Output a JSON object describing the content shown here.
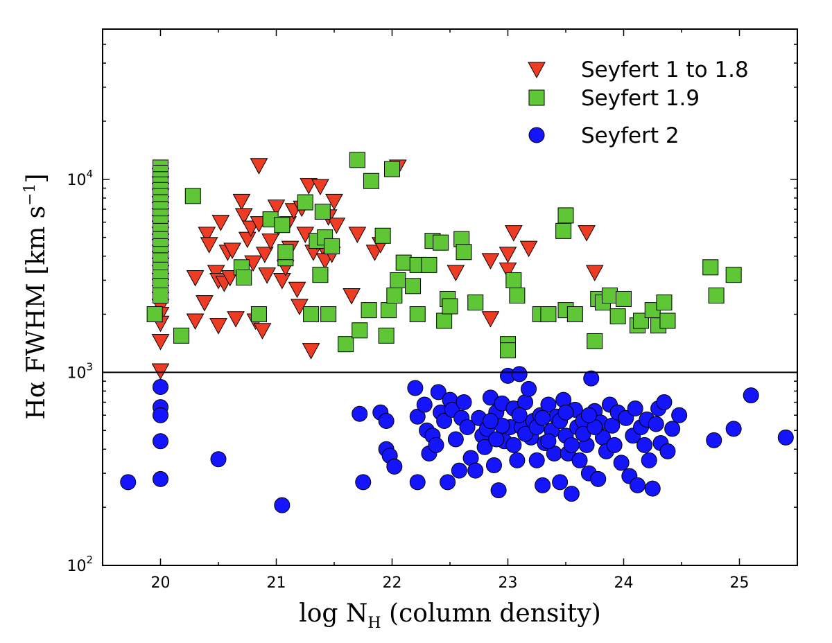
{
  "chart_data": {
    "type": "scatter",
    "xlabel": {
      "main": "log N",
      "sub": "H",
      "rest": " (column density)"
    },
    "ylabel": {
      "main": "Hα FWHM [km s",
      "sup": "−1",
      "rest": "]"
    },
    "xlim": [
      19.5,
      25.5
    ],
    "ylim": [
      100,
      60000
    ],
    "yscale": "log",
    "xticks": [
      20,
      21,
      22,
      23,
      24,
      25
    ],
    "yticks": [
      {
        "value": 100,
        "base": "10",
        "exp": "2"
      },
      {
        "value": 1000,
        "base": "10",
        "exp": "3"
      },
      {
        "value": 10000,
        "base": "10",
        "exp": "4"
      }
    ],
    "hline": 1000,
    "grid": false,
    "legend_position": "top-right",
    "series": [
      {
        "name": "Seyfert 1 to 1.8",
        "marker": "triangle-down",
        "color": "#ee3b23",
        "points": [
          [
            20,
            10500
          ],
          [
            20,
            9500
          ],
          [
            20,
            8800
          ],
          [
            20,
            8200
          ],
          [
            20,
            7500
          ],
          [
            20,
            7000
          ],
          [
            20,
            6500
          ],
          [
            20,
            6000
          ],
          [
            20,
            5600
          ],
          [
            20,
            5200
          ],
          [
            20,
            4800
          ],
          [
            20,
            4500
          ],
          [
            20,
            4200
          ],
          [
            20,
            3900
          ],
          [
            20,
            3600
          ],
          [
            20,
            3300
          ],
          [
            20,
            3000
          ],
          [
            20,
            2800
          ],
          [
            20,
            2600
          ],
          [
            20,
            2400
          ],
          [
            20,
            2200
          ],
          [
            20,
            2000
          ],
          [
            20,
            1800
          ],
          [
            20,
            1450
          ],
          [
            20,
            1020
          ],
          [
            20.3,
            3100
          ],
          [
            20.3,
            1850
          ],
          [
            20.38,
            2300
          ],
          [
            20.4,
            5200
          ],
          [
            20.42,
            4600
          ],
          [
            20.48,
            3300
          ],
          [
            20.5,
            3000
          ],
          [
            20.5,
            1750
          ],
          [
            20.52,
            6000
          ],
          [
            20.55,
            2900
          ],
          [
            20.58,
            4200
          ],
          [
            20.6,
            3100
          ],
          [
            20.62,
            4300
          ],
          [
            20.65,
            1900
          ],
          [
            20.7,
            7700
          ],
          [
            20.72,
            6500
          ],
          [
            20.75,
            4900
          ],
          [
            20.78,
            5600
          ],
          [
            20.8,
            3700
          ],
          [
            20.82,
            1850
          ],
          [
            20.85,
            11800
          ],
          [
            20.85,
            5900
          ],
          [
            20.88,
            1650
          ],
          [
            20.9,
            4100
          ],
          [
            20.92,
            3200
          ],
          [
            20.95,
            4800
          ],
          [
            21.0,
            7200
          ],
          [
            21.02,
            5700
          ],
          [
            21.05,
            3000
          ],
          [
            21.08,
            3500
          ],
          [
            21.1,
            5900
          ],
          [
            21.12,
            4400
          ],
          [
            21.15,
            6900
          ],
          [
            21.18,
            2700
          ],
          [
            21.2,
            2200
          ],
          [
            21.22,
            7100
          ],
          [
            21.25,
            5200
          ],
          [
            21.28,
            9300
          ],
          [
            21.3,
            1300
          ],
          [
            21.32,
            4200
          ],
          [
            21.35,
            4800
          ],
          [
            21.38,
            9200
          ],
          [
            21.4,
            4500
          ],
          [
            21.42,
            3800
          ],
          [
            21.45,
            6400
          ],
          [
            21.48,
            4100
          ],
          [
            21.5,
            7700
          ],
          [
            21.52,
            5800
          ],
          [
            21.65,
            2500
          ],
          [
            21.7,
            5200
          ],
          [
            21.85,
            4200
          ],
          [
            21.9,
            4600
          ],
          [
            22.05,
            11600
          ],
          [
            22.55,
            3300
          ],
          [
            22.85,
            3800
          ],
          [
            22.85,
            1900
          ],
          [
            23.0,
            4100
          ],
          [
            23.0,
            3400
          ],
          [
            23.05,
            5300
          ],
          [
            23.18,
            4400
          ],
          [
            23.68,
            5300
          ],
          [
            23.75,
            3300
          ]
        ]
      },
      {
        "name": "Seyfert 1.9",
        "marker": "square",
        "color": "#5fc635",
        "points": [
          [
            20,
            11500
          ],
          [
            20,
            10800
          ],
          [
            20,
            10000
          ],
          [
            20,
            9400
          ],
          [
            20,
            8800
          ],
          [
            20,
            8200
          ],
          [
            20,
            7600
          ],
          [
            20,
            7000
          ],
          [
            20,
            6400
          ],
          [
            20,
            5900
          ],
          [
            20,
            5400
          ],
          [
            20,
            4900
          ],
          [
            20,
            4500
          ],
          [
            20,
            4100
          ],
          [
            20,
            3800
          ],
          [
            20,
            3400
          ],
          [
            20,
            3100
          ],
          [
            20,
            2800
          ],
          [
            20,
            2500
          ],
          [
            19.95,
            2000
          ],
          [
            20.18,
            1550
          ],
          [
            20.28,
            8200
          ],
          [
            20.7,
            3500
          ],
          [
            20.72,
            3100
          ],
          [
            20.85,
            2000
          ],
          [
            20.95,
            6200
          ],
          [
            21.05,
            5800
          ],
          [
            21.08,
            3900
          ],
          [
            21.08,
            4200
          ],
          [
            21.25,
            7600
          ],
          [
            21.3,
            2000
          ],
          [
            21.35,
            4800
          ],
          [
            21.38,
            3200
          ],
          [
            21.4,
            6800
          ],
          [
            21.42,
            5000
          ],
          [
            21.45,
            2000
          ],
          [
            21.48,
            4500
          ],
          [
            21.6,
            1400
          ],
          [
            21.7,
            12600
          ],
          [
            21.72,
            1650
          ],
          [
            21.8,
            2100
          ],
          [
            21.82,
            9800
          ],
          [
            21.92,
            5100
          ],
          [
            21.95,
            1550
          ],
          [
            21.97,
            2100
          ],
          [
            22.0,
            11300
          ],
          [
            22.02,
            2500
          ],
          [
            22.05,
            3000
          ],
          [
            22.1,
            3700
          ],
          [
            22.18,
            2800
          ],
          [
            22.22,
            3600
          ],
          [
            22.22,
            2000
          ],
          [
            22.32,
            3600
          ],
          [
            22.35,
            4800
          ],
          [
            22.42,
            4700
          ],
          [
            22.45,
            1850
          ],
          [
            22.48,
            2400
          ],
          [
            22.5,
            2200
          ],
          [
            22.6,
            4900
          ],
          [
            22.62,
            4200
          ],
          [
            22.72,
            2300
          ],
          [
            23.0,
            1400
          ],
          [
            23.0,
            1300
          ],
          [
            23.05,
            3000
          ],
          [
            23.08,
            2500
          ],
          [
            23.28,
            2000
          ],
          [
            23.35,
            2000
          ],
          [
            23.48,
            5400
          ],
          [
            23.5,
            6500
          ],
          [
            23.5,
            2100
          ],
          [
            23.58,
            2000
          ],
          [
            23.75,
            1450
          ],
          [
            23.78,
            2400
          ],
          [
            23.82,
            2300
          ],
          [
            23.88,
            2500
          ],
          [
            23.95,
            1950
          ],
          [
            24.0,
            2400
          ],
          [
            24.12,
            1750
          ],
          [
            24.15,
            1850
          ],
          [
            24.25,
            2100
          ],
          [
            24.3,
            1750
          ],
          [
            24.35,
            2300
          ],
          [
            24.38,
            1850
          ],
          [
            24.75,
            3500
          ],
          [
            24.8,
            2500
          ],
          [
            24.95,
            3200
          ]
        ]
      },
      {
        "name": "Seyfert 2",
        "marker": "circle",
        "color": "#1414ff",
        "points": [
          [
            19.72,
            270
          ],
          [
            20,
            840
          ],
          [
            20,
            660
          ],
          [
            20,
            600
          ],
          [
            20,
            440
          ],
          [
            20,
            280
          ],
          [
            20.5,
            355
          ],
          [
            21.05,
            205
          ],
          [
            21.72,
            610
          ],
          [
            21.75,
            270
          ],
          [
            21.9,
            620
          ],
          [
            21.95,
            560
          ],
          [
            21.95,
            400
          ],
          [
            21.98,
            370
          ],
          [
            22.02,
            325
          ],
          [
            22.2,
            830
          ],
          [
            22.22,
            270
          ],
          [
            22.22,
            590
          ],
          [
            22.28,
            680
          ],
          [
            22.3,
            500
          ],
          [
            22.32,
            380
          ],
          [
            22.35,
            470
          ],
          [
            22.38,
            420
          ],
          [
            22.4,
            790
          ],
          [
            22.42,
            620
          ],
          [
            22.45,
            560
          ],
          [
            22.48,
            270
          ],
          [
            22.5,
            720
          ],
          [
            22.52,
            640
          ],
          [
            22.55,
            450
          ],
          [
            22.58,
            310
          ],
          [
            22.6,
            580
          ],
          [
            22.62,
            700
          ],
          [
            22.65,
            520
          ],
          [
            22.68,
            360
          ],
          [
            22.72,
            310
          ],
          [
            22.75,
            580
          ],
          [
            22.78,
            470
          ],
          [
            22.8,
            410
          ],
          [
            22.82,
            510
          ],
          [
            22.85,
            740
          ],
          [
            22.88,
            330
          ],
          [
            22.9,
            620
          ],
          [
            22.92,
            245
          ],
          [
            22.95,
            690
          ],
          [
            22.97,
            440
          ],
          [
            23.0,
            960
          ],
          [
            23.02,
            520
          ],
          [
            23.05,
            650
          ],
          [
            23.08,
            350
          ],
          [
            23.1,
            980
          ],
          [
            23.12,
            520
          ],
          [
            23.15,
            700
          ],
          [
            23.18,
            820
          ],
          [
            23.2,
            460
          ],
          [
            23.22,
            560
          ],
          [
            23.25,
            350
          ],
          [
            23.28,
            600
          ],
          [
            23.3,
            260
          ],
          [
            23.32,
            430
          ],
          [
            23.35,
            680
          ],
          [
            23.38,
            500
          ],
          [
            23.4,
            380
          ],
          [
            23.42,
            590
          ],
          [
            23.45,
            270
          ],
          [
            23.48,
            720
          ],
          [
            23.5,
            470
          ],
          [
            23.52,
            380
          ],
          [
            23.55,
            235
          ],
          [
            23.58,
            640
          ],
          [
            23.6,
            520
          ],
          [
            23.62,
            350
          ],
          [
            23.65,
            560
          ],
          [
            23.68,
            420
          ],
          [
            23.7,
            300
          ],
          [
            23.72,
            930
          ],
          [
            23.75,
            630
          ],
          [
            23.78,
            280
          ],
          [
            23.8,
            550
          ],
          [
            23.82,
            460
          ],
          [
            23.85,
            390
          ],
          [
            23.88,
            680
          ],
          [
            23.9,
            530
          ],
          [
            23.92,
            420
          ],
          [
            23.95,
            620
          ],
          [
            23.98,
            340
          ],
          [
            24.02,
            580
          ],
          [
            24.05,
            290
          ],
          [
            24.08,
            470
          ],
          [
            24.1,
            650
          ],
          [
            24.12,
            260
          ],
          [
            24.15,
            520
          ],
          [
            24.18,
            420
          ],
          [
            24.2,
            570
          ],
          [
            24.22,
            350
          ],
          [
            24.25,
            250
          ],
          [
            24.28,
            540
          ],
          [
            24.3,
            650
          ],
          [
            24.32,
            430
          ],
          [
            24.35,
            700
          ],
          [
            24.38,
            390
          ],
          [
            24.42,
            510
          ],
          [
            24.48,
            600
          ],
          [
            22.9,
            450
          ],
          [
            22.95,
            530
          ],
          [
            23.05,
            420
          ],
          [
            23.15,
            480
          ],
          [
            23.25,
            520
          ],
          [
            23.35,
            440
          ],
          [
            23.45,
            560
          ],
          [
            23.55,
            420
          ],
          [
            23.65,
            480
          ],
          [
            23.75,
            520
          ],
          [
            22.85,
            560
          ],
          [
            23.1,
            600
          ],
          [
            23.3,
            580
          ],
          [
            23.5,
            620
          ],
          [
            23.7,
            600
          ],
          [
            24.78,
            445
          ],
          [
            24.95,
            510
          ],
          [
            25.1,
            760
          ],
          [
            25.4,
            460
          ]
        ]
      }
    ]
  }
}
